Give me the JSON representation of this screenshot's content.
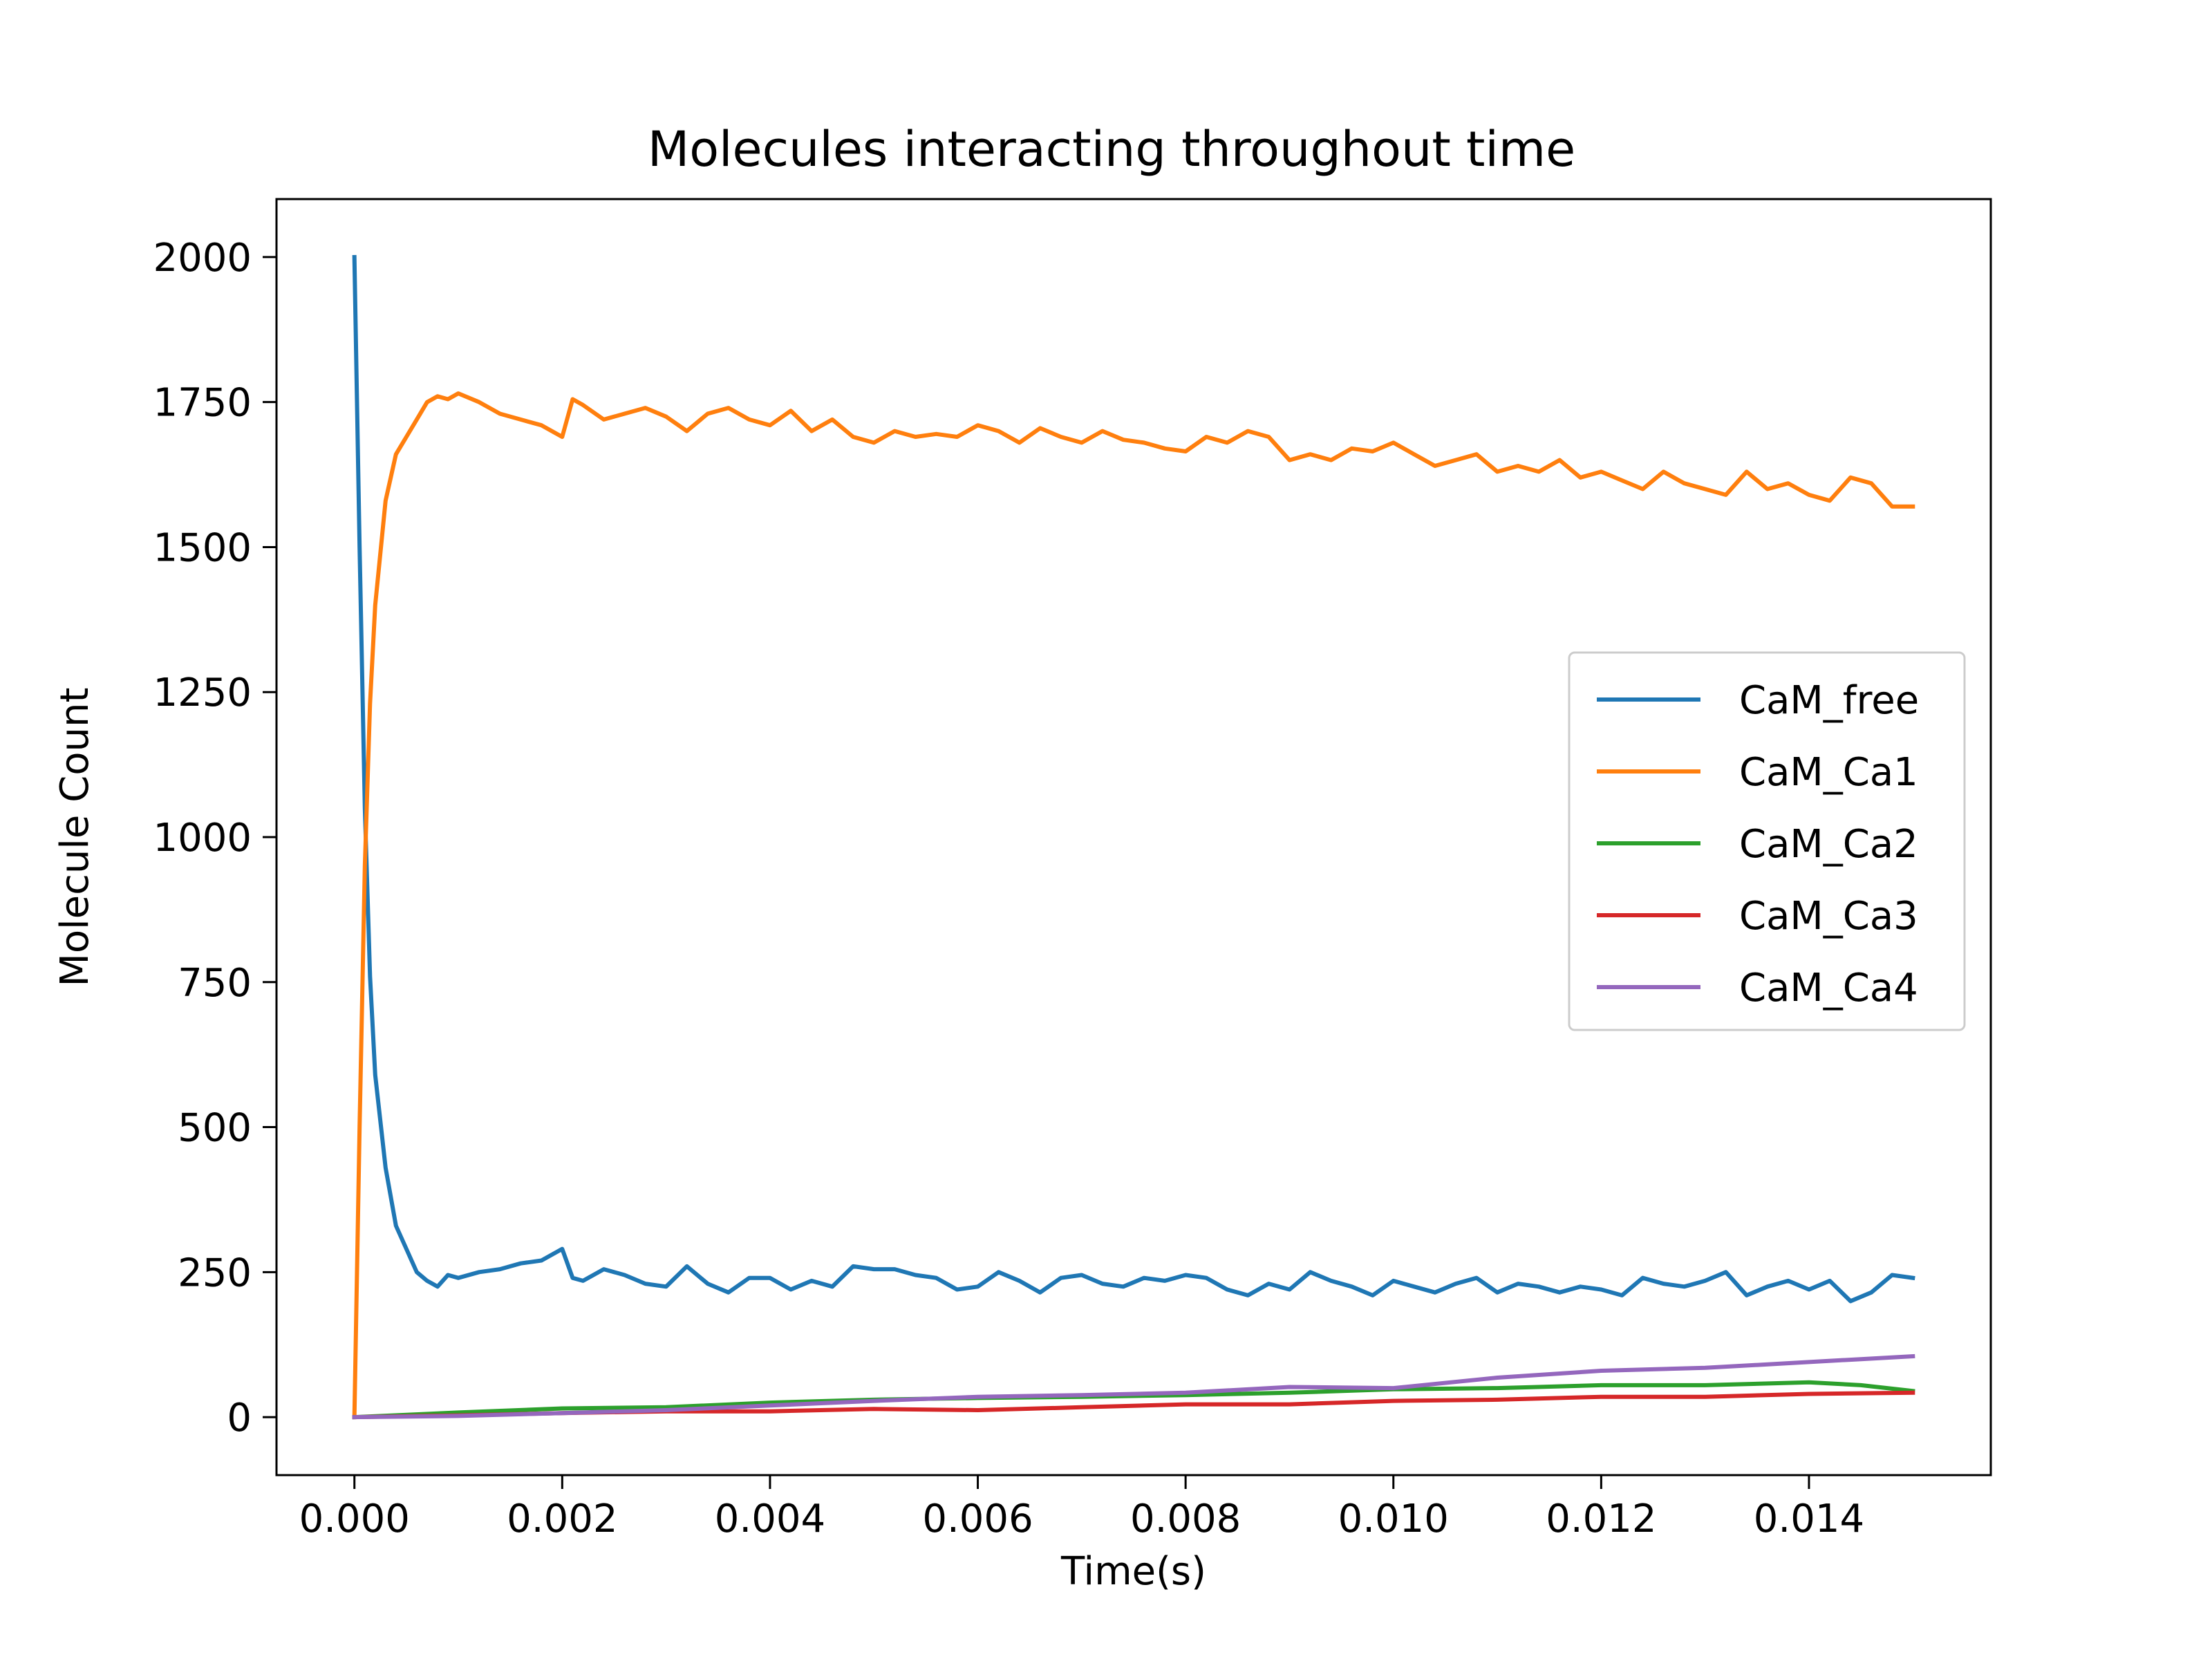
{
  "chart_data": {
    "type": "line",
    "title": "Molecules interacting throughout time",
    "xlabel": "Time(s)",
    "ylabel": "Molecule Count",
    "xlim": [
      -0.00075,
      0.01575
    ],
    "ylim": [
      -100,
      2100
    ],
    "xticks": [
      0.0,
      0.002,
      0.004,
      0.006,
      0.008,
      0.01,
      0.012,
      0.014
    ],
    "xtick_labels": [
      "0.000",
      "0.002",
      "0.004",
      "0.006",
      "0.008",
      "0.010",
      "0.012",
      "0.014"
    ],
    "yticks": [
      0,
      250,
      500,
      750,
      1000,
      1250,
      1500,
      1750,
      2000
    ],
    "ytick_labels": [
      "0",
      "250",
      "500",
      "750",
      "1000",
      "1250",
      "1500",
      "1750",
      "2000"
    ],
    "grid": false,
    "legend_position": "center-right",
    "series": [
      {
        "name": "CaM_free",
        "color": "#1f77b4",
        "x": [
          0,
          5e-05,
          0.0001,
          0.00015,
          0.0002,
          0.0003,
          0.0004,
          0.0005,
          0.0006,
          0.0007,
          0.0008,
          0.0009,
          0.001,
          0.0012,
          0.0014,
          0.0016,
          0.0018,
          0.002,
          0.0021,
          0.0022,
          0.0024,
          0.0026,
          0.0028,
          0.003,
          0.0032,
          0.0034,
          0.0036,
          0.0038,
          0.004,
          0.0042,
          0.0044,
          0.0046,
          0.0048,
          0.005,
          0.0052,
          0.0054,
          0.0056,
          0.0058,
          0.006,
          0.0062,
          0.0064,
          0.0066,
          0.0068,
          0.007,
          0.0072,
          0.0074,
          0.0076,
          0.0078,
          0.008,
          0.0082,
          0.0084,
          0.0086,
          0.0088,
          0.009,
          0.0092,
          0.0094,
          0.0096,
          0.0098,
          0.01,
          0.0102,
          0.0104,
          0.0106,
          0.0108,
          0.011,
          0.0112,
          0.0114,
          0.0116,
          0.0118,
          0.012,
          0.0122,
          0.0124,
          0.0126,
          0.0128,
          0.013,
          0.0132,
          0.0134,
          0.0136,
          0.0138,
          0.014,
          0.0142,
          0.0144,
          0.0146,
          0.0148,
          0.015
        ],
        "y": [
          2000,
          1500,
          1050,
          760,
          590,
          430,
          330,
          290,
          250,
          235,
          225,
          245,
          240,
          250,
          255,
          265,
          270,
          290,
          240,
          235,
          255,
          245,
          230,
          225,
          260,
          230,
          215,
          240,
          240,
          220,
          235,
          225,
          260,
          255,
          255,
          245,
          240,
          220,
          225,
          250,
          235,
          215,
          240,
          245,
          230,
          225,
          240,
          235,
          245,
          240,
          220,
          210,
          230,
          220,
          250,
          235,
          225,
          210,
          235,
          225,
          215,
          230,
          240,
          215,
          230,
          225,
          215,
          225,
          220,
          210,
          240,
          230,
          225,
          235,
          250,
          210,
          225,
          235,
          220,
          235,
          200,
          215,
          245,
          240
        ]
      },
      {
        "name": "CaM_Ca1",
        "color": "#ff7f0e",
        "x": [
          0,
          5e-05,
          0.0001,
          0.00015,
          0.0002,
          0.0003,
          0.0004,
          0.0005,
          0.0006,
          0.0007,
          0.0008,
          0.0009,
          0.001,
          0.0012,
          0.0014,
          0.0016,
          0.0018,
          0.002,
          0.0021,
          0.0022,
          0.0024,
          0.0026,
          0.0028,
          0.003,
          0.0032,
          0.0034,
          0.0036,
          0.0038,
          0.004,
          0.0042,
          0.0044,
          0.0046,
          0.0048,
          0.005,
          0.0052,
          0.0054,
          0.0056,
          0.0058,
          0.006,
          0.0062,
          0.0064,
          0.0066,
          0.0068,
          0.007,
          0.0072,
          0.0074,
          0.0076,
          0.0078,
          0.008,
          0.0082,
          0.0084,
          0.0086,
          0.0088,
          0.009,
          0.0092,
          0.0094,
          0.0096,
          0.0098,
          0.01,
          0.0102,
          0.0104,
          0.0106,
          0.0108,
          0.011,
          0.0112,
          0.0114,
          0.0116,
          0.0118,
          0.012,
          0.0122,
          0.0124,
          0.0126,
          0.0128,
          0.013,
          0.0132,
          0.0134,
          0.0136,
          0.0138,
          0.014,
          0.0142,
          0.0144,
          0.0146,
          0.0148,
          0.015
        ],
        "y": [
          0,
          500,
          950,
          1230,
          1400,
          1580,
          1660,
          1690,
          1720,
          1750,
          1760,
          1755,
          1765,
          1750,
          1730,
          1720,
          1710,
          1690,
          1755,
          1745,
          1720,
          1730,
          1740,
          1725,
          1700,
          1730,
          1740,
          1720,
          1710,
          1735,
          1700,
          1720,
          1690,
          1680,
          1700,
          1690,
          1695,
          1690,
          1710,
          1700,
          1680,
          1705,
          1690,
          1680,
          1700,
          1685,
          1680,
          1670,
          1665,
          1690,
          1680,
          1700,
          1690,
          1650,
          1660,
          1650,
          1670,
          1665,
          1680,
          1660,
          1640,
          1650,
          1660,
          1630,
          1640,
          1630,
          1650,
          1620,
          1630,
          1615,
          1600,
          1630,
          1610,
          1600,
          1590,
          1630,
          1600,
          1610,
          1590,
          1580,
          1620,
          1610,
          1570,
          1570
        ]
      },
      {
        "name": "CaM_Ca2",
        "color": "#2ca02c",
        "x": [
          0,
          0.001,
          0.002,
          0.003,
          0.004,
          0.005,
          0.006,
          0.007,
          0.008,
          0.009,
          0.01,
          0.011,
          0.012,
          0.013,
          0.014,
          0.0145,
          0.015
        ],
        "y": [
          0,
          8,
          15,
          17,
          25,
          30,
          33,
          35,
          38,
          42,
          48,
          50,
          55,
          55,
          60,
          55,
          45
        ]
      },
      {
        "name": "CaM_Ca3",
        "color": "#d62728",
        "x": [
          0,
          0.001,
          0.002,
          0.003,
          0.004,
          0.005,
          0.006,
          0.007,
          0.008,
          0.009,
          0.01,
          0.011,
          0.012,
          0.013,
          0.014,
          0.015
        ],
        "y": [
          0,
          3,
          7,
          10,
          10,
          14,
          12,
          17,
          22,
          22,
          28,
          30,
          35,
          35,
          40,
          42
        ]
      },
      {
        "name": "CaM_Ca4",
        "color": "#9467bd",
        "x": [
          0,
          0.001,
          0.002,
          0.003,
          0.004,
          0.005,
          0.006,
          0.007,
          0.008,
          0.009,
          0.01,
          0.011,
          0.012,
          0.013,
          0.014,
          0.0145,
          0.015
        ],
        "y": [
          0,
          2,
          7,
          12,
          20,
          28,
          35,
          38,
          42,
          52,
          50,
          68,
          80,
          85,
          95,
          100,
          105
        ]
      }
    ]
  }
}
